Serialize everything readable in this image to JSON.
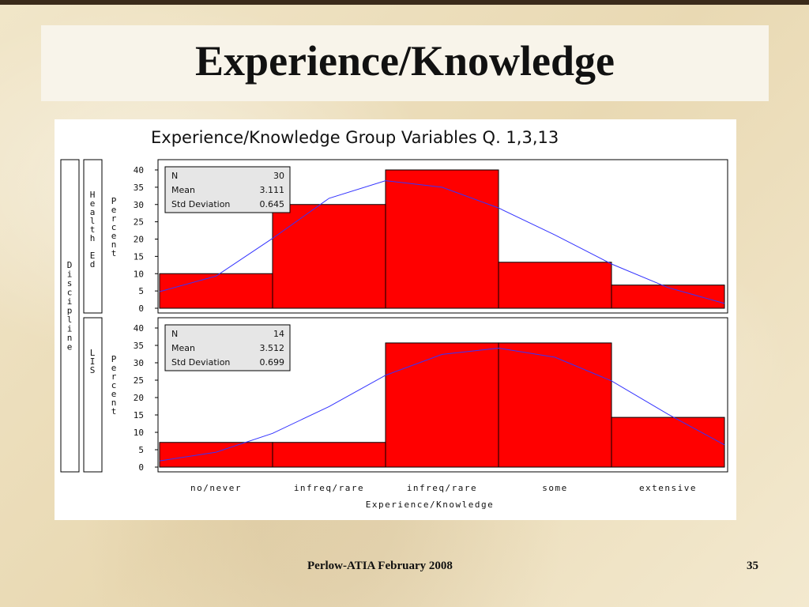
{
  "slide": {
    "title": "Experience/Knowledge",
    "footer": "Perlow-ATIA February 2008",
    "page_number": "35"
  },
  "colors": {
    "bar_fill": "#ff0000",
    "bar_stroke": "#000000",
    "curve": "#3333ff",
    "stats_box": "#e6e6e6"
  },
  "chart_data": {
    "type": "bar",
    "title": "Experience/Knowledge Group Variables Q. 1,3,13",
    "xlabel": "Experience/Knowledge",
    "ylabel": "Percent",
    "group_label": "Discipline",
    "categories": [
      "no/never",
      "infreq/rare",
      "infreq/rare",
      "some",
      "extensive"
    ],
    "ylim": [
      0,
      40
    ],
    "yticks": [
      0,
      5,
      10,
      15,
      20,
      25,
      30,
      35,
      40
    ],
    "panels": [
      {
        "group": "Health Ed",
        "values": [
          10,
          30,
          40,
          13.3,
          6.7
        ],
        "stats": {
          "N": "30",
          "Mean": "3.111",
          "Std Deviation": "0.645"
        },
        "curve": [
          4.8,
          9.3,
          20.2,
          31.8,
          36.9,
          35.0,
          29.0,
          21.2,
          12.8,
          6.0,
          1.4
        ]
      },
      {
        "group": "LIS",
        "values": [
          7.1,
          7.1,
          35.7,
          35.7,
          14.3
        ],
        "stats": {
          "N": "14",
          "Mean": "3.512",
          "Std Deviation": "0.699"
        },
        "curve": [
          1.8,
          4.3,
          9.7,
          17.4,
          26.4,
          32.4,
          34.2,
          31.6,
          24.8,
          15.2,
          6.4
        ]
      }
    ]
  }
}
